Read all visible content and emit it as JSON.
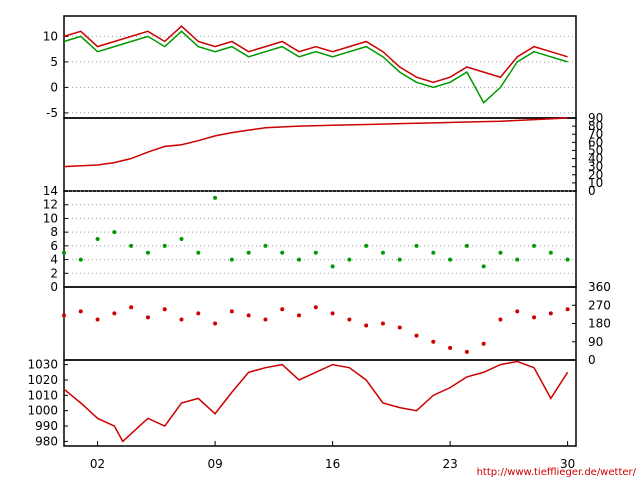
{
  "credit": "http://www.tiefflieger.de/wetter/",
  "colors": {
    "red": "#cc0000",
    "green": "#009900",
    "grid": "#999999",
    "axis": "#000000"
  },
  "chart_data": [
    {
      "type": "line",
      "panel": "temperature",
      "ylim": [
        -6,
        14
      ],
      "y_ticks": [
        "10",
        "5",
        "0",
        "-5"
      ],
      "y_tick_values": [
        10,
        5,
        0,
        -5
      ],
      "grid": true,
      "x": [
        0,
        1,
        2,
        3,
        4,
        5,
        6,
        7,
        8,
        9,
        10,
        11,
        12,
        13,
        14,
        15,
        16,
        17,
        18,
        19,
        20,
        21,
        22,
        23,
        24,
        25,
        26,
        27,
        28,
        29,
        30
      ],
      "series": [
        {
          "color": "red",
          "values": [
            10,
            11,
            8,
            9,
            10,
            11,
            9,
            12,
            9,
            8,
            9,
            7,
            8,
            9,
            7,
            8,
            7,
            8,
            9,
            7,
            4,
            2,
            1,
            2,
            4,
            3,
            2,
            6,
            8,
            7,
            6
          ]
        },
        {
          "color": "green",
          "values": [
            9,
            10,
            7,
            8,
            9,
            10,
            8,
            11,
            8,
            7,
            8,
            6,
            7,
            8,
            6,
            7,
            6,
            7,
            8,
            6,
            3,
            1,
            0,
            1,
            3,
            -3,
            0,
            5,
            7,
            6,
            5
          ]
        }
      ]
    },
    {
      "type": "line",
      "panel": "rain",
      "ylim": [
        0,
        90
      ],
      "y_ticks": [
        "90",
        "80",
        "70",
        "60",
        "50",
        "40",
        "30",
        "20",
        "10",
        "0"
      ],
      "y_tick_values": [
        90,
        80,
        70,
        60,
        50,
        40,
        30,
        20,
        10,
        0
      ],
      "x": [
        0,
        2,
        3,
        4,
        5,
        6,
        7,
        8,
        9,
        10,
        11,
        12,
        14,
        16,
        18,
        20,
        22,
        24,
        26,
        28,
        30
      ],
      "series": [
        {
          "color": "red",
          "values": [
            30,
            32,
            35,
            40,
            48,
            55,
            57,
            62,
            68,
            72,
            75,
            78,
            80,
            81,
            82,
            83,
            84,
            85,
            86,
            88,
            90
          ]
        }
      ]
    },
    {
      "type": "scatter",
      "panel": "wind_speed",
      "ylim": [
        0,
        14
      ],
      "y_ticks": [
        "14",
        "12",
        "10",
        "8",
        "6",
        "4",
        "2",
        "0"
      ],
      "y_tick_values": [
        14,
        12,
        10,
        8,
        6,
        4,
        2,
        0
      ],
      "grid": true,
      "x": [
        0,
        1,
        2,
        3,
        4,
        5,
        6,
        7,
        8,
        9,
        10,
        11,
        12,
        13,
        14,
        15,
        16,
        17,
        18,
        19,
        20,
        21,
        22,
        23,
        24,
        25,
        26,
        27,
        28,
        29,
        30
      ],
      "series": [
        {
          "color": "green",
          "values": [
            5,
            4,
            7,
            8,
            6,
            5,
            6,
            7,
            5,
            13,
            4,
            5,
            6,
            5,
            4,
            5,
            3,
            4,
            6,
            5,
            4,
            6,
            5,
            4,
            6,
            3,
            5,
            4,
            6,
            5,
            4
          ]
        }
      ]
    },
    {
      "type": "scatter",
      "panel": "wind_direction",
      "ylim": [
        0,
        360
      ],
      "y_ticks": [
        "360",
        "270",
        "180",
        "90",
        "0"
      ],
      "y_tick_values": [
        360,
        270,
        180,
        90,
        0
      ],
      "x": [
        0,
        1,
        2,
        3,
        4,
        5,
        6,
        7,
        8,
        9,
        10,
        11,
        12,
        13,
        14,
        15,
        16,
        17,
        18,
        19,
        20,
        21,
        22,
        23,
        24,
        25,
        26,
        27,
        28,
        29,
        30
      ],
      "series": [
        {
          "color": "red",
          "values": [
            220,
            240,
            200,
            230,
            260,
            210,
            250,
            200,
            230,
            180,
            240,
            220,
            200,
            250,
            220,
            260,
            230,
            200,
            170,
            180,
            160,
            120,
            90,
            60,
            40,
            80,
            200,
            240,
            210,
            230,
            250
          ]
        }
      ]
    },
    {
      "type": "line",
      "panel": "pressure",
      "ylim": [
        977,
        1033
      ],
      "y_ticks": [
        "1030",
        "1020",
        "1010",
        "1000",
        "990",
        "980"
      ],
      "y_tick_values": [
        1030,
        1020,
        1010,
        1000,
        990,
        980
      ],
      "x_ticks": [
        "02",
        "09",
        "16",
        "23",
        "30"
      ],
      "x_tick_values": [
        2,
        9,
        16,
        23,
        30
      ],
      "x": [
        0,
        1,
        2,
        3,
        3.5,
        4,
        5,
        6,
        7,
        8,
        9,
        10,
        11,
        12,
        13,
        14,
        15,
        16,
        17,
        18,
        19,
        20,
        21,
        22,
        23,
        24,
        25,
        26,
        27,
        28,
        29,
        30
      ],
      "series": [
        {
          "color": "red",
          "values": [
            1014,
            1005,
            995,
            990,
            980,
            985,
            995,
            990,
            1005,
            1008,
            998,
            1012,
            1025,
            1028,
            1030,
            1020,
            1025,
            1030,
            1028,
            1020,
            1005,
            1002,
            1000,
            1010,
            1015,
            1022,
            1025,
            1030,
            1032,
            1028,
            1008,
            1025
          ]
        }
      ]
    }
  ]
}
